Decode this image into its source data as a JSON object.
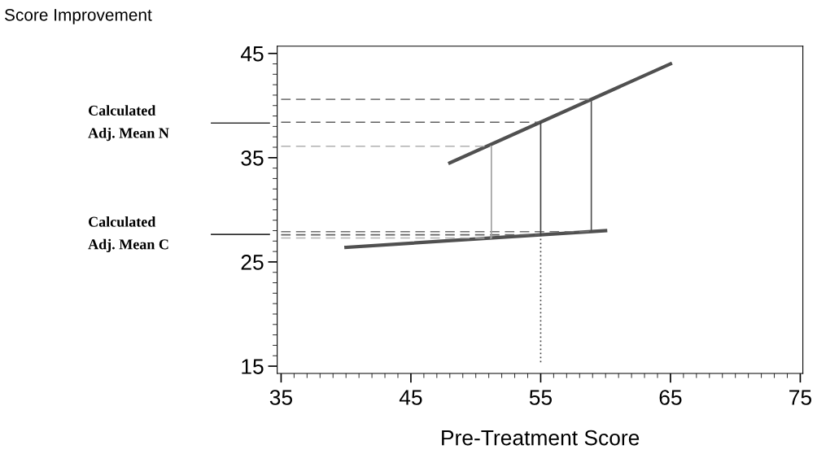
{
  "chart_data": {
    "type": "line",
    "title": "Score Improvement",
    "xlabel": "Pre-Treatment Score",
    "xlim": [
      34.7,
      75.2
    ],
    "ylim": [
      14.3,
      45.7
    ],
    "xticks": [
      35,
      45,
      55,
      65,
      75
    ],
    "yticks": [
      15,
      25,
      35,
      45
    ],
    "grid": false,
    "marker": "none",
    "series": [
      {
        "x": [
          48,
          65
        ],
        "values": [
          34.5,
          44.0
        ],
        "color": "#505050",
        "line_style": "solid"
      },
      {
        "x": [
          40,
          60
        ],
        "values": [
          26.4,
          28.0
        ],
        "color": "#505050",
        "line_style": "solid"
      },
      {
        "x": [
          35,
          58.9
        ],
        "values": [
          40.6,
          40.6
        ],
        "color": "#808080",
        "line_style": "dashed"
      },
      {
        "x": [
          35,
          55
        ],
        "values": [
          38.4,
          38.4
        ],
        "color": "#606060",
        "line_style": "dashed"
      },
      {
        "x": [
          35,
          51.2
        ],
        "values": [
          36.1,
          36.1
        ],
        "color": "#b0b0b0",
        "line_style": "dashed"
      },
      {
        "x": [
          35,
          58.9
        ],
        "values": [
          27.9,
          27.9
        ],
        "color": "#707070",
        "line_style": "dashed"
      },
      {
        "x": [
          35,
          55
        ],
        "values": [
          27.6,
          27.6
        ],
        "color": "#606060",
        "line_style": "dashed"
      },
      {
        "x": [
          35,
          51.2
        ],
        "values": [
          27.3,
          27.3
        ],
        "color": "#b0b0b0",
        "line_style": "dashed"
      },
      {
        "x": [
          51.2,
          51.2
        ],
        "values": [
          27.3,
          36.1
        ],
        "color": "#a0a0a0",
        "line_style": "solid"
      },
      {
        "x": [
          55,
          55
        ],
        "values": [
          27.6,
          38.4
        ],
        "color": "#404040",
        "line_style": "solid"
      },
      {
        "x": [
          58.9,
          58.9
        ],
        "values": [
          27.9,
          40.6
        ],
        "color": "#505050",
        "line_style": "solid"
      },
      {
        "x": [
          55,
          55
        ],
        "values": [
          27.6,
          15.3
        ],
        "color": "#404040",
        "line_style": "dotted"
      }
    ],
    "annotations": [
      "Calculated\nAdj. Mean N",
      "Calculated\nAdj. Mean C"
    ]
  }
}
